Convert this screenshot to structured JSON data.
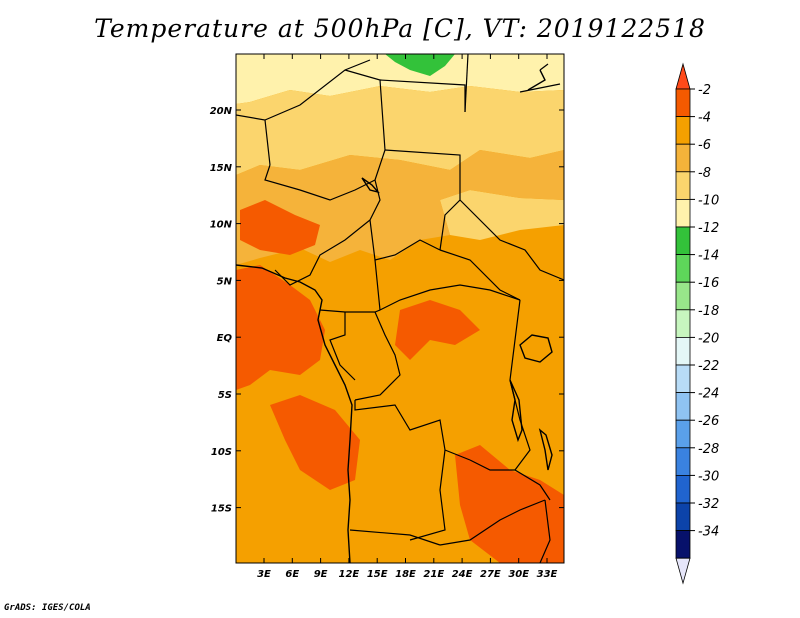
{
  "title": "Temperature at 500hPa [C], VT: 2019122518",
  "credit": "GrADS: IGES/COLA",
  "axes": {
    "lat_labels": [
      "20N",
      "15N",
      "10N",
      "5N",
      "EQ",
      "5S",
      "10S",
      "15S"
    ],
    "lon_labels": [
      "3E",
      "6E",
      "9E",
      "12E",
      "15E",
      "18E",
      "21E",
      "24E",
      "27E",
      "30E",
      "33E"
    ]
  },
  "colorbar": {
    "labels": [
      "-2",
      "-4",
      "-6",
      "-8",
      "-10",
      "-12",
      "-14",
      "-16",
      "-18",
      "-20",
      "-22",
      "-24",
      "-26",
      "-28",
      "-30",
      "-32",
      "-34"
    ],
    "colors": {
      "top_arrow": "#ff4a1a",
      "bands": [
        "#f55a00",
        "#f5a000",
        "#f5b33a",
        "#fbd56d",
        "#fff2ac",
        "#33c23a",
        "#5ed65a",
        "#98e68a",
        "#c7f6bf",
        "#e4f7f7",
        "#b8dcf7",
        "#8fc3f2",
        "#5aa0ea",
        "#3a82e0",
        "#2064cf",
        "#0c43a9",
        "#07116b"
      ],
      "bottom_arrow": "#e6e6fa"
    }
  },
  "map_colors": {
    "warmest": "#f55a00",
    "warm": "#f5a000",
    "mild": "#f5b33a",
    "cool": "#fbd56d",
    "cooler": "#fff2ac",
    "green": "#33c23a"
  }
}
